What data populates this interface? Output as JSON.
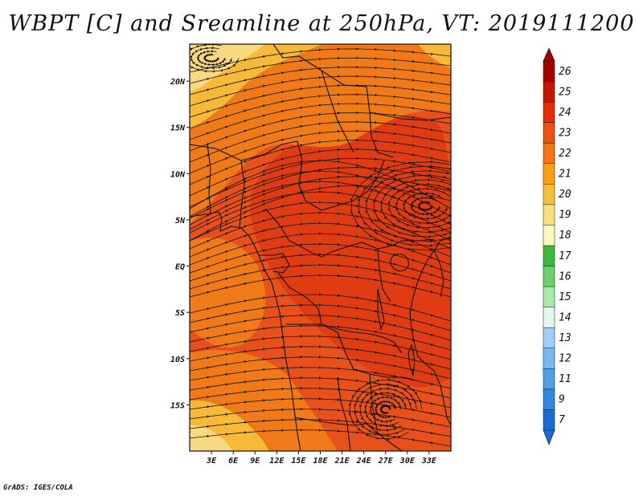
{
  "title": "WBPT [C] and Sreamline at 250hPa, VT: 2019111200",
  "credit": "GrADS: IGES/COLA",
  "map": {
    "lon_range": [
      0,
      36
    ],
    "lat_range": [
      -20,
      24
    ],
    "lat_ticks": [
      {
        "value": 20,
        "label": "20N"
      },
      {
        "value": 15,
        "label": "15N"
      },
      {
        "value": 10,
        "label": "10N"
      },
      {
        "value": 5,
        "label": "5N"
      },
      {
        "value": 0,
        "label": "EQ"
      },
      {
        "value": -5,
        "label": "5S"
      },
      {
        "value": -10,
        "label": "10S"
      },
      {
        "value": -15,
        "label": "15S"
      }
    ],
    "lon_ticks": [
      {
        "value": 3,
        "label": "3E"
      },
      {
        "value": 6,
        "label": "6E"
      },
      {
        "value": 9,
        "label": "9E"
      },
      {
        "value": 12,
        "label": "12E"
      },
      {
        "value": 15,
        "label": "15E"
      },
      {
        "value": 18,
        "label": "18E"
      },
      {
        "value": 21,
        "label": "21E"
      },
      {
        "value": 24,
        "label": "24E"
      },
      {
        "value": 27,
        "label": "27E"
      },
      {
        "value": 30,
        "label": "30E"
      },
      {
        "value": 33,
        "label": "33E"
      }
    ]
  },
  "colorbar": {
    "labels": [
      "26",
      "25",
      "24",
      "23",
      "22",
      "21",
      "20",
      "19",
      "18",
      "17",
      "16",
      "15",
      "14",
      "13",
      "12",
      "11",
      "9",
      "7"
    ],
    "colors": [
      "#a50000",
      "#c81400",
      "#e42c08",
      "#f05010",
      "#f87410",
      "#f8a010",
      "#f8c038",
      "#f8e080",
      "#fcf8c0",
      "#3cb83c",
      "#6cd06c",
      "#a8e8a8",
      "#e0f8f0",
      "#a0d0f8",
      "#78b8f0",
      "#50a0e8",
      "#3088e0",
      "#1a6ad8"
    ]
  },
  "field_colors": {
    "light_yellow": "#f8d880",
    "yellow_orange": "#f8b838",
    "orange": "#f07a18",
    "red_orange": "#e8501c",
    "red": "#e03c14"
  }
}
